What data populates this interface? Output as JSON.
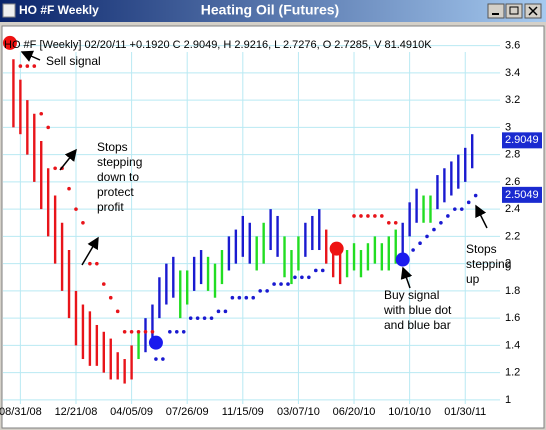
{
  "window_title": "HO #F Weekly",
  "chart_data": {
    "type": "ohlc",
    "title": "Heating Oil (Futures)",
    "subtitle": "HO #F [Weekly] 02/20/11 +0.1920 C 2.9049, H 2.9216, L 2.7276, O 2.7285, V 81.4910K",
    "xlim": [
      -5,
      138
    ],
    "ylim": [
      0.97,
      3.7
    ],
    "xticks": [
      {
        "value": 0,
        "label": "08/31/08"
      },
      {
        "value": 16,
        "label": "12/21/08"
      },
      {
        "value": 32,
        "label": "04/05/09"
      },
      {
        "value": 48,
        "label": "07/26/09"
      },
      {
        "value": 64,
        "label": "11/15/09"
      },
      {
        "value": 80,
        "label": "03/07/10"
      },
      {
        "value": 96,
        "label": "06/20/10"
      },
      {
        "value": 112,
        "label": "10/10/10"
      },
      {
        "value": 128,
        "label": "01/30/11"
      }
    ],
    "yticks": [
      1,
      1.2,
      1.4,
      1.6,
      1.8,
      2,
      2.2,
      2.4,
      2.6,
      2.8,
      3,
      3.2,
      3.4,
      3.6
    ],
    "grid": true,
    "series": [
      {
        "color": "#e8141a",
        "x": [
          -2,
          0,
          2,
          4,
          6,
          8,
          10,
          12,
          14,
          16,
          18,
          20,
          22,
          24,
          26,
          28,
          30,
          32,
          88,
          90,
          92
        ],
        "high": [
          3.5,
          3.35,
          3.2,
          3.1,
          2.9,
          2.7,
          2.5,
          2.3,
          2.1,
          1.8,
          1.7,
          1.65,
          1.55,
          1.5,
          1.45,
          1.35,
          1.3,
          1.4,
          2.25,
          2.15,
          2.1
        ],
        "low": [
          3.0,
          2.95,
          2.8,
          2.6,
          2.4,
          2.2,
          2.0,
          1.8,
          1.6,
          1.4,
          1.3,
          1.25,
          1.25,
          1.2,
          1.15,
          1.15,
          1.12,
          1.15,
          2.0,
          1.9,
          1.85
        ]
      },
      {
        "color": "#22dd22",
        "x": [
          34,
          46,
          48,
          54,
          56,
          58,
          68,
          70,
          76,
          78,
          80,
          94,
          96,
          98,
          100,
          102,
          104,
          106,
          108,
          116,
          118
        ],
        "high": [
          1.5,
          1.95,
          1.95,
          2.05,
          2.0,
          2.1,
          2.2,
          2.3,
          2.2,
          2.1,
          2.2,
          2.1,
          2.15,
          2.1,
          2.15,
          2.2,
          2.15,
          2.2,
          2.25,
          2.5,
          2.5
        ],
        "low": [
          1.3,
          1.6,
          1.7,
          1.8,
          1.75,
          1.85,
          1.95,
          2.0,
          1.9,
          1.85,
          1.95,
          1.9,
          1.95,
          1.9,
          1.95,
          2.0,
          1.95,
          1.95,
          2.0,
          2.3,
          2.3
        ]
      },
      {
        "color": "#1a1ad0",
        "x": [
          36,
          38,
          40,
          42,
          44,
          50,
          52,
          60,
          62,
          64,
          66,
          72,
          74,
          82,
          84,
          86,
          110,
          112,
          114,
          120,
          122,
          124,
          126,
          128,
          130
        ],
        "high": [
          1.6,
          1.7,
          1.9,
          2.0,
          2.05,
          2.05,
          2.1,
          2.2,
          2.25,
          2.35,
          2.3,
          2.4,
          2.35,
          2.3,
          2.35,
          2.4,
          2.3,
          2.45,
          2.55,
          2.65,
          2.7,
          2.75,
          2.8,
          2.85,
          2.95
        ],
        "low": [
          1.35,
          1.45,
          1.6,
          1.7,
          1.75,
          1.8,
          1.85,
          1.95,
          2.0,
          2.05,
          2.0,
          2.1,
          2.05,
          2.05,
          2.1,
          2.1,
          2.05,
          2.2,
          2.3,
          2.4,
          2.45,
          2.5,
          2.55,
          2.6,
          2.7
        ]
      }
    ],
    "stops": [
      {
        "color": "#e8141a",
        "x": [
          0,
          2,
          4,
          6,
          8,
          10,
          12,
          14,
          16,
          18,
          20,
          22,
          24,
          26,
          28,
          30,
          32,
          34,
          36,
          38,
          96,
          98,
          100,
          102,
          104,
          106,
          108
        ],
        "values": [
          3.45,
          3.45,
          3.45,
          3.1,
          3.0,
          2.7,
          2.7,
          2.55,
          2.4,
          2.3,
          2.0,
          2.0,
          1.85,
          1.75,
          1.65,
          1.5,
          1.5,
          1.5,
          1.5,
          1.5,
          2.35,
          2.35,
          2.35,
          2.35,
          2.35,
          2.3,
          2.3
        ]
      },
      {
        "color": "#1a1ad0",
        "x": [
          39,
          41,
          43,
          45,
          47,
          49,
          51,
          53,
          55,
          57,
          59,
          61,
          63,
          65,
          67,
          69,
          71,
          73,
          75,
          77,
          79,
          81,
          83,
          85,
          87,
          111,
          113,
          115,
          117,
          119,
          121,
          123,
          125,
          127,
          129,
          131
        ],
        "values": [
          1.3,
          1.3,
          1.5,
          1.5,
          1.5,
          1.6,
          1.6,
          1.6,
          1.6,
          1.65,
          1.65,
          1.75,
          1.75,
          1.75,
          1.75,
          1.8,
          1.8,
          1.85,
          1.85,
          1.85,
          1.9,
          1.9,
          1.9,
          1.95,
          1.95,
          2.05,
          2.1,
          2.15,
          2.2,
          2.25,
          2.3,
          2.35,
          2.4,
          2.4,
          2.45,
          2.5
        ]
      }
    ],
    "signals": {
      "x": [
        -3,
        39,
        91,
        110
      ],
      "values": [
        3.62,
        1.42,
        2.11,
        2.03
      ],
      "colors": [
        "#ee1111",
        "#1a1aee",
        "#ee1111",
        "#1a1aee"
      ]
    },
    "price_labels": [
      2.9049,
      2.5049
    ],
    "price_label_color": "#1a2ad0",
    "annotations": [
      {
        "lines": [
          "Sell signal"
        ]
      },
      {
        "lines": [
          "Stops",
          "stepping",
          "down to",
          "protect",
          "profit"
        ]
      },
      {
        "lines": [
          "Buy signal",
          "with blue dot",
          "and blue bar"
        ]
      },
      {
        "lines": [
          "Stops",
          "stepping",
          "up"
        ]
      }
    ]
  }
}
